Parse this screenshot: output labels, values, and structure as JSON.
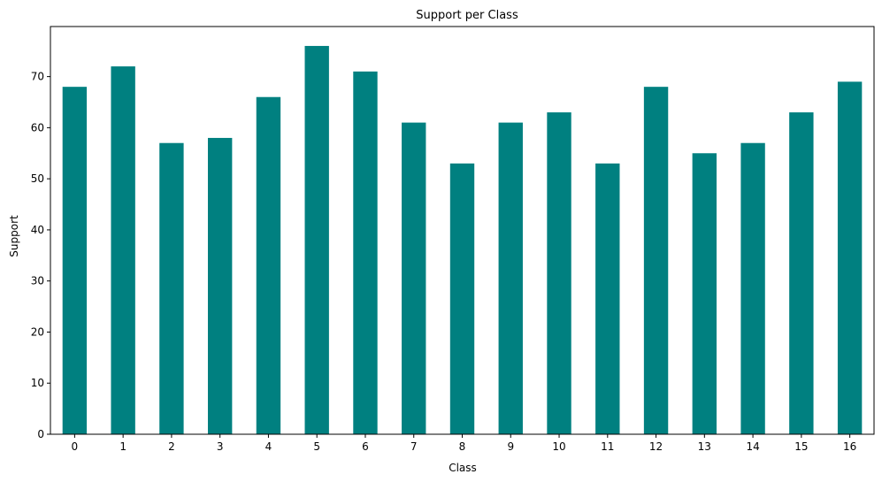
{
  "chart_data": {
    "type": "bar",
    "title": "Support per Class",
    "xlabel": "Class",
    "ylabel": "Support",
    "categories": [
      "0",
      "1",
      "2",
      "3",
      "4",
      "5",
      "6",
      "7",
      "8",
      "9",
      "10",
      "11",
      "12",
      "13",
      "14",
      "15",
      "16"
    ],
    "values": [
      68,
      72,
      57,
      58,
      66,
      76,
      71,
      61,
      53,
      61,
      63,
      53,
      68,
      55,
      57,
      63,
      69
    ],
    "ylim": [
      0,
      79.8
    ],
    "yticks": [
      0,
      10,
      20,
      30,
      40,
      50,
      60,
      70
    ],
    "bar_color": "#008080",
    "grid": false,
    "legend": "none"
  }
}
